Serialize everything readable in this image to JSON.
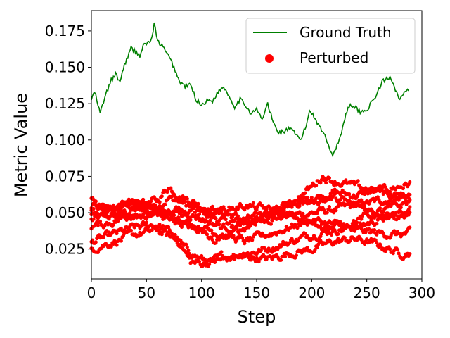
{
  "chart_data": {
    "type": "line",
    "title": "",
    "xlabel": "Step",
    "ylabel": "Metric Value",
    "xlim": [
      0,
      300
    ],
    "ylim": [
      0.0045,
      0.189
    ],
    "xticks": [
      0,
      50,
      100,
      150,
      200,
      250,
      300
    ],
    "xtick_labels": [
      "0",
      "50",
      "100",
      "150",
      "200",
      "250",
      "300"
    ],
    "yticks": [
      0.025,
      0.05,
      0.075,
      0.1,
      0.125,
      0.15,
      0.175
    ],
    "ytick_labels": [
      "0.025",
      "0.050",
      "0.075",
      "0.100",
      "0.125",
      "0.150",
      "0.175"
    ],
    "grid": false,
    "legend_position": "top-right",
    "colors": {
      "ground_truth": "#008000",
      "perturbed": "#ff0000"
    },
    "series": [
      {
        "name": "Ground Truth",
        "kind": "line",
        "x": [
          0,
          3,
          6,
          8,
          10,
          14,
          18,
          22,
          26,
          30,
          33,
          36,
          40,
          44,
          48,
          52,
          55,
          57,
          60,
          64,
          68,
          72,
          76,
          80,
          85,
          90,
          95,
          100,
          105,
          110,
          115,
          120,
          125,
          130,
          135,
          140,
          145,
          150,
          155,
          160,
          165,
          170,
          175,
          180,
          185,
          190,
          195,
          198,
          201,
          205,
          210,
          215,
          219,
          223,
          227,
          231,
          235,
          240,
          245,
          250,
          255,
          260,
          264,
          268,
          272,
          276,
          280,
          284,
          288
        ],
        "y": [
          0.128,
          0.133,
          0.124,
          0.118,
          0.124,
          0.133,
          0.141,
          0.145,
          0.14,
          0.152,
          0.157,
          0.163,
          0.161,
          0.158,
          0.166,
          0.167,
          0.17,
          0.18,
          0.168,
          0.165,
          0.16,
          0.155,
          0.148,
          0.14,
          0.137,
          0.138,
          0.128,
          0.124,
          0.127,
          0.127,
          0.133,
          0.137,
          0.13,
          0.123,
          0.128,
          0.124,
          0.118,
          0.121,
          0.114,
          0.125,
          0.112,
          0.105,
          0.106,
          0.108,
          0.104,
          0.1,
          0.11,
          0.12,
          0.118,
          0.112,
          0.106,
          0.097,
          0.09,
          0.096,
          0.105,
          0.118,
          0.125,
          0.122,
          0.119,
          0.121,
          0.126,
          0.133,
          0.14,
          0.142,
          0.143,
          0.135,
          0.128,
          0.132,
          0.134
        ]
      },
      {
        "name": "Perturbed",
        "kind": "scatter",
        "trajectories": [
          {
            "x": [
              0,
              20,
              40,
              60,
              70,
              80,
              90,
              100,
              110,
              120,
              140,
              160,
              180,
              200,
              220,
              240,
              260,
              280,
              289
            ],
            "y": [
              0.045,
              0.048,
              0.052,
              0.055,
              0.06,
              0.058,
              0.054,
              0.05,
              0.047,
              0.044,
              0.043,
              0.046,
              0.048,
              0.05,
              0.052,
              0.055,
              0.058,
              0.06,
              0.062
            ]
          },
          {
            "x": [
              0,
              20,
              40,
              60,
              70,
              80,
              100,
              120,
              140,
              160,
              180,
              200,
              220,
              240,
              260,
              280,
              289
            ],
            "y": [
              0.055,
              0.052,
              0.056,
              0.058,
              0.068,
              0.062,
              0.055,
              0.05,
              0.045,
              0.05,
              0.055,
              0.06,
              0.064,
              0.062,
              0.065,
              0.068,
              0.07
            ]
          },
          {
            "x": [
              0,
              20,
              40,
              60,
              75,
              85,
              100,
              110,
              120,
              140,
              160,
              180,
              200,
              220,
              240,
              260,
              280,
              289
            ],
            "y": [
              0.03,
              0.035,
              0.04,
              0.042,
              0.035,
              0.025,
              0.018,
              0.016,
              0.02,
              0.022,
              0.025,
              0.03,
              0.035,
              0.038,
              0.04,
              0.045,
              0.05,
              0.052
            ]
          },
          {
            "x": [
              0,
              10,
              20,
              40,
              60,
              80,
              90,
              100,
              120,
              140,
              160,
              180,
              200,
              220,
              240,
              260,
              280,
              289
            ],
            "y": [
              0.025,
              0.028,
              0.03,
              0.035,
              0.038,
              0.03,
              0.016,
              0.015,
              0.018,
              0.02,
              0.018,
              0.022,
              0.025,
              0.03,
              0.032,
              0.028,
              0.022,
              0.023
            ]
          },
          {
            "x": [
              0,
              20,
              40,
              60,
              80,
              100,
              120,
              140,
              160,
              180,
              200,
              220,
              240,
              260,
              280,
              289
            ],
            "y": [
              0.05,
              0.055,
              0.058,
              0.052,
              0.045,
              0.04,
              0.035,
              0.03,
              0.035,
              0.04,
              0.045,
              0.042,
              0.038,
              0.036,
              0.035,
              0.036
            ]
          },
          {
            "x": [
              0,
              20,
              40,
              60,
              80,
              100,
              120,
              140,
              160,
              180,
              200,
              210,
              220,
              240,
              260,
              280,
              289
            ],
            "y": [
              0.048,
              0.05,
              0.047,
              0.05,
              0.052,
              0.046,
              0.04,
              0.042,
              0.048,
              0.055,
              0.068,
              0.075,
              0.072,
              0.068,
              0.065,
              0.062,
              0.06
            ]
          },
          {
            "x": [
              0,
              20,
              40,
              60,
              80,
              100,
              110,
              120,
              140,
              160,
              180,
              200,
              220,
              240,
              260,
              280,
              289
            ],
            "y": [
              0.04,
              0.044,
              0.05,
              0.048,
              0.044,
              0.038,
              0.03,
              0.032,
              0.04,
              0.05,
              0.056,
              0.058,
              0.06,
              0.055,
              0.05,
              0.048,
              0.05
            ]
          },
          {
            "x": [
              0,
              20,
              40,
              60,
              80,
              100,
              120,
              140,
              160,
              180,
              200,
              220,
              240,
              260,
              280,
              289
            ],
            "y": [
              0.058,
              0.05,
              0.055,
              0.05,
              0.048,
              0.05,
              0.052,
              0.055,
              0.052,
              0.048,
              0.042,
              0.04,
              0.045,
              0.05,
              0.055,
              0.058
            ]
          }
        ]
      }
    ]
  }
}
